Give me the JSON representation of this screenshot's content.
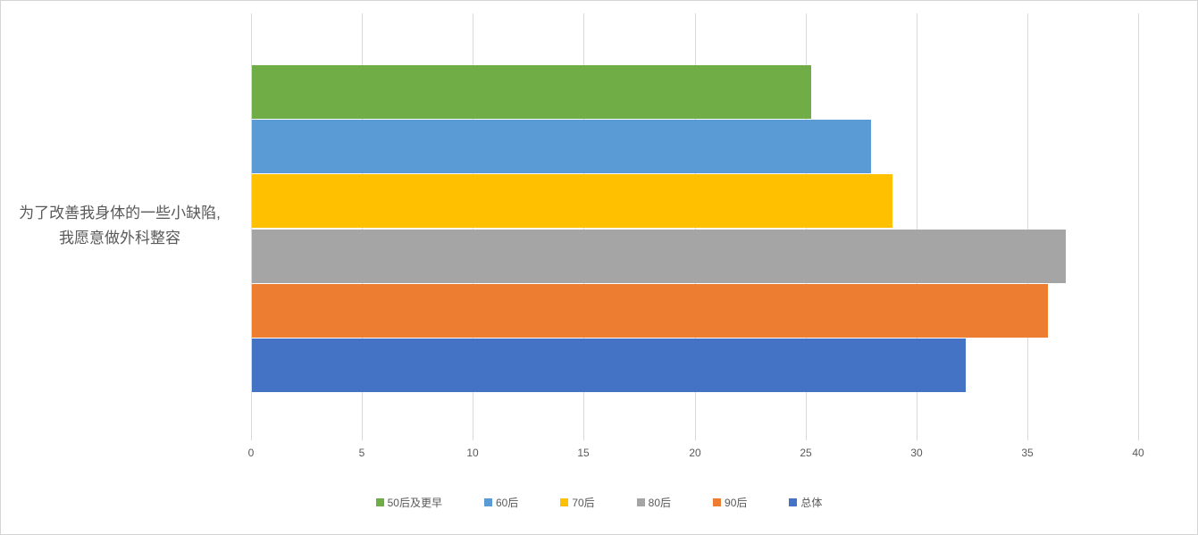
{
  "chart_data": {
    "type": "bar",
    "orientation": "horizontal",
    "title": "",
    "category_label_lines": [
      "为了改善我身体的一些小缺陷,",
      "我愿意做外科整容"
    ],
    "categories": [
      "为了改善我身体的一些小缺陷, 我愿意做外科整容"
    ],
    "series": [
      {
        "name": "50后及更早",
        "values": [
          25.2
        ],
        "color": "#70AD47"
      },
      {
        "name": "60后",
        "values": [
          27.9
        ],
        "color": "#5B9BD5"
      },
      {
        "name": "70后",
        "values": [
          28.9
        ],
        "color": "#FFC000"
      },
      {
        "name": "80后",
        "values": [
          36.7
        ],
        "color": "#A5A5A5"
      },
      {
        "name": "90后",
        "values": [
          35.9
        ],
        "color": "#ED7D31"
      },
      {
        "name": "总体",
        "values": [
          32.2
        ],
        "color": "#4472C4"
      }
    ],
    "xlim": [
      0,
      40
    ],
    "xticks": [
      "0",
      "5",
      "10",
      "15",
      "20",
      "25",
      "30",
      "35",
      "40"
    ],
    "tick_step": 5,
    "grid": true,
    "legend_position": "bottom",
    "colors": {
      "axis_text": "#595959",
      "gridline": "#D9D9D9",
      "frame_border": "#D5D5D5",
      "background": "#FFFFFF"
    }
  }
}
